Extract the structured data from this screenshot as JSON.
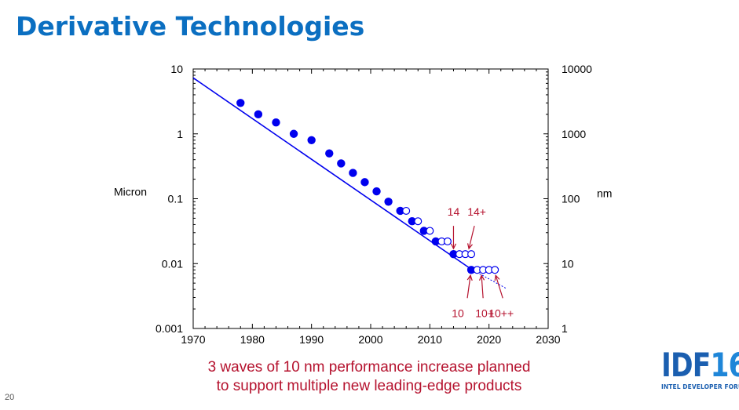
{
  "slide": {
    "title": "Derivative Technologies",
    "subtitle_lines": [
      "3 waves of 10 nm performance increase planned",
      "to support multiple new leading-edge products"
    ],
    "page_number": "20",
    "logo": {
      "main": "IDF",
      "year": "16",
      "tagline": "INTEL DEVELOPER FORUM"
    }
  },
  "colors": {
    "title": "#0b6fc1",
    "series": "#0000ee",
    "annotation": "#b5122e",
    "logo": "#1b5fb0"
  },
  "chart_data": {
    "type": "scatter",
    "scale": {
      "y_left": "log",
      "y_right": "log"
    },
    "xlim": [
      1970,
      2030
    ],
    "ylim_left": [
      0.001,
      10
    ],
    "ylim_right": [
      1,
      10000
    ],
    "x_ticks": [
      "1970",
      "1980",
      "1990",
      "2000",
      "2010",
      "2020",
      "2030"
    ],
    "y_left_ticks": [
      {
        "value": 10,
        "label": "10"
      },
      {
        "value": 1,
        "label": "1"
      },
      {
        "value": 0.1,
        "label": "0.1"
      },
      {
        "value": 0.01,
        "label": "0.01"
      },
      {
        "value": 0.001,
        "label": "0.001"
      }
    ],
    "y_right_ticks": [
      {
        "value": 10000,
        "label": "10000"
      },
      {
        "value": 1000,
        "label": "1000"
      },
      {
        "value": 100,
        "label": "100"
      },
      {
        "value": 10,
        "label": "10"
      },
      {
        "value": 1,
        "label": "1"
      }
    ],
    "ylabel_left": "Micron",
    "ylabel_right": "nm",
    "trend_line": [
      [
        1970,
        7.3
      ],
      [
        2017,
        0.0082
      ]
    ],
    "trend_extension": [
      [
        2017,
        0.0082
      ],
      [
        2023,
        0.0041
      ]
    ],
    "series": [
      {
        "marker": "filled",
        "points": [
          [
            1978,
            3.0
          ],
          [
            1981,
            2.0
          ],
          [
            1984,
            1.5
          ],
          [
            1987,
            1.0
          ],
          [
            1990,
            0.8
          ],
          [
            1993,
            0.5
          ],
          [
            1995,
            0.35
          ],
          [
            1997,
            0.25
          ],
          [
            1999,
            0.18
          ],
          [
            2001,
            0.13
          ],
          [
            2003,
            0.09
          ],
          [
            2005,
            0.065
          ],
          [
            2007,
            0.045
          ],
          [
            2009,
            0.032
          ],
          [
            2011,
            0.022
          ],
          [
            2014,
            0.014
          ],
          [
            2017,
            0.008
          ]
        ]
      },
      {
        "marker": "open",
        "points": [
          [
            2006,
            0.065
          ],
          [
            2008,
            0.045
          ],
          [
            2010,
            0.032
          ],
          [
            2012,
            0.022
          ],
          [
            2013,
            0.022
          ],
          [
            2015,
            0.014
          ],
          [
            2016,
            0.014
          ],
          [
            2017,
            0.014
          ],
          [
            2018,
            0.008
          ],
          [
            2019,
            0.008
          ],
          [
            2020,
            0.008
          ],
          [
            2021,
            0.008
          ]
        ]
      }
    ],
    "annotations": [
      {
        "label": "14",
        "x": 2014,
        "y": 0.014,
        "position": "above"
      },
      {
        "label": "14+",
        "x": 2017,
        "y": 0.014,
        "position": "above"
      },
      {
        "label": "10",
        "x": 2017,
        "y": 0.008,
        "position": "below"
      },
      {
        "label": "10+",
        "x": 2019,
        "y": 0.008,
        "position": "below"
      },
      {
        "label": "10++",
        "x": 2021,
        "y": 0.008,
        "position": "below"
      }
    ]
  }
}
